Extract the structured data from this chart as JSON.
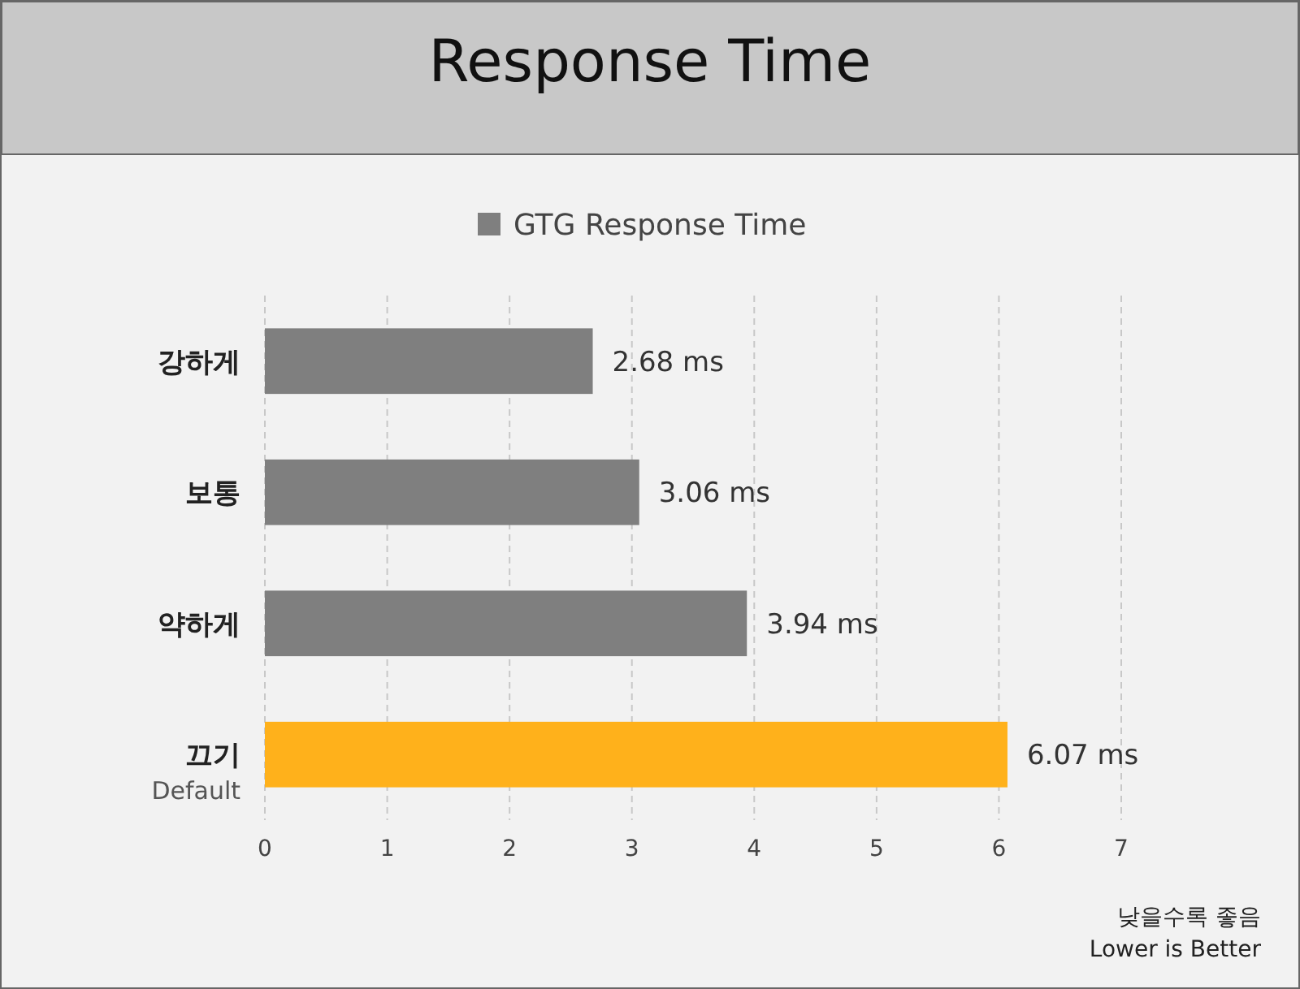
{
  "chart_data": {
    "type": "bar",
    "orientation": "horizontal",
    "title": "Response Time",
    "categories": [
      "강하게",
      "보통",
      "약하게",
      "끄기\nDefault"
    ],
    "series": [
      {
        "name": "GTG Response Time",
        "color": "#7f7f7f",
        "colors": [
          "#7f7f7f",
          "#7f7f7f",
          "#7f7f7f",
          "#ffb11b"
        ],
        "values": [
          2.68,
          3.06,
          3.94,
          6.07
        ],
        "value_labels": [
          "2.68 ms",
          "3.06 ms",
          "3.94 ms",
          "6.07 ms"
        ]
      }
    ],
    "xlim": [
      0,
      7
    ],
    "xticks": [
      0,
      1,
      2,
      3,
      4,
      5,
      6,
      7
    ],
    "grid": "x",
    "legend": "top",
    "annotations": [
      "낮을수록 좋음",
      "Lower is Better"
    ]
  }
}
